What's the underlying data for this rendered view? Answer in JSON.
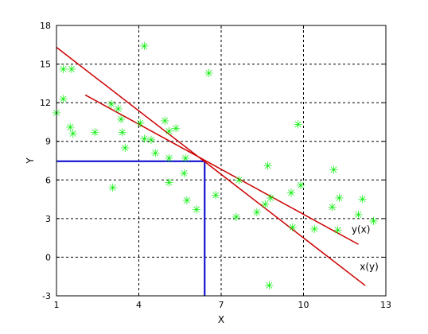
{
  "chart_data": {
    "type": "scatter",
    "xlabel": "X",
    "ylabel": "Y",
    "xlim": [
      1,
      13
    ],
    "ylim": [
      -3,
      18
    ],
    "xticks": [
      1,
      4,
      7,
      10,
      13
    ],
    "yticks": [
      -3,
      0,
      3,
      6,
      9,
      12,
      15,
      18
    ],
    "grid": true,
    "colors": {
      "points": "#00ee00",
      "fit_lines": "#cc0000",
      "guide_lines": "#0000cc",
      "grid": "#000000"
    },
    "points": [
      [
        1.0,
        11.2
      ],
      [
        1.25,
        14.6
      ],
      [
        1.55,
        14.6
      ],
      [
        1.25,
        12.3
      ],
      [
        1.5,
        10.1
      ],
      [
        1.6,
        9.6
      ],
      [
        2.4,
        9.7
      ],
      [
        3.0,
        11.9
      ],
      [
        3.25,
        11.5
      ],
      [
        3.35,
        10.7
      ],
      [
        3.4,
        9.7
      ],
      [
        3.5,
        8.5
      ],
      [
        3.05,
        5.4
      ],
      [
        4.05,
        10.4
      ],
      [
        4.2,
        9.2
      ],
      [
        4.45,
        9.1
      ],
      [
        4.6,
        8.1
      ],
      [
        4.95,
        10.6
      ],
      [
        5.1,
        9.8
      ],
      [
        5.35,
        10.0
      ],
      [
        5.1,
        7.7
      ],
      [
        5.7,
        7.7
      ],
      [
        5.65,
        6.5
      ],
      [
        5.1,
        5.8
      ],
      [
        5.75,
        4.4
      ],
      [
        6.1,
        3.7
      ],
      [
        6.55,
        14.3
      ],
      [
        4.2,
        16.4
      ],
      [
        6.8,
        4.8
      ],
      [
        7.55,
        3.1
      ],
      [
        7.65,
        6.0
      ],
      [
        8.3,
        3.5
      ],
      [
        8.7,
        7.1
      ],
      [
        8.6,
        4.1
      ],
      [
        8.8,
        4.6
      ],
      [
        8.75,
        -2.2
      ],
      [
        9.55,
        5.0
      ],
      [
        9.8,
        10.3
      ],
      [
        9.9,
        5.6
      ],
      [
        9.6,
        2.3
      ],
      [
        10.4,
        2.2
      ],
      [
        11.1,
        6.8
      ],
      [
        11.05,
        3.9
      ],
      [
        11.3,
        4.6
      ],
      [
        11.25,
        2.1
      ],
      [
        12.0,
        3.3
      ],
      [
        12.15,
        4.5
      ],
      [
        12.55,
        2.8
      ]
    ],
    "lines": [
      {
        "name": "y(x)",
        "x": [
          2.05,
          12.0
        ],
        "y": [
          12.6,
          1.0
        ]
      },
      {
        "name": "x(y)",
        "x": [
          1.0,
          12.25
        ],
        "y": [
          16.3,
          -2.2
        ]
      }
    ],
    "guide_lines": [
      {
        "x": [
          1,
          6.4
        ],
        "y": [
          7.45,
          7.45
        ]
      },
      {
        "x": [
          6.4,
          6.4
        ],
        "y": [
          -3,
          7.45
        ]
      }
    ],
    "annotations": [
      {
        "text": "y(x)",
        "x": 11.75,
        "y": 1.9
      },
      {
        "text": "x(y)",
        "x": 12.05,
        "y": -1.0
      }
    ]
  }
}
